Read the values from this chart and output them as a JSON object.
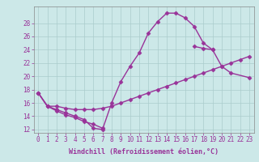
{
  "xlabel": "Windchill (Refroidissement éolien,°C)",
  "x_hours": [
    0,
    1,
    2,
    3,
    4,
    5,
    6,
    7,
    8,
    9,
    10,
    11,
    12,
    13,
    14,
    15,
    16,
    17,
    18,
    19,
    20,
    21,
    22,
    23
  ],
  "line1_x": [
    0,
    1,
    2,
    3,
    4,
    5,
    6,
    7,
    8,
    9,
    10,
    11,
    12,
    13,
    14,
    15,
    16,
    17,
    18,
    19
  ],
  "line1_y": [
    17.5,
    15.5,
    15.0,
    14.5,
    14.0,
    13.5,
    12.2,
    12.0,
    16.0,
    19.2,
    21.5,
    23.5,
    26.5,
    28.2,
    29.5,
    29.5,
    28.8,
    27.5,
    25.0,
    24.0
  ],
  "line2_x": [
    0,
    1,
    2,
    3,
    4,
    5,
    6,
    7,
    17,
    18,
    19,
    20,
    21,
    23
  ],
  "line2_y": [
    17.5,
    15.5,
    14.8,
    14.2,
    13.8,
    13.2,
    12.8,
    12.2,
    24.5,
    24.2,
    24.0,
    21.5,
    20.5,
    19.8
  ],
  "line3_x": [
    0,
    1,
    2,
    3,
    4,
    5,
    6,
    7,
    8,
    9,
    10,
    11,
    12,
    13,
    14,
    15,
    16,
    17,
    18,
    19,
    20,
    21,
    22,
    23
  ],
  "line3_y": [
    17.5,
    15.5,
    15.5,
    15.2,
    15.0,
    15.0,
    15.0,
    15.2,
    15.5,
    16.0,
    16.5,
    17.0,
    17.5,
    18.0,
    18.5,
    19.0,
    19.5,
    20.0,
    20.5,
    21.0,
    21.5,
    22.0,
    22.5,
    23.0
  ],
  "line_color": "#993399",
  "bg_color": "#cce8e8",
  "grid_color": "#aacccc",
  "ylim": [
    11.5,
    30.5
  ],
  "yticks": [
    12,
    14,
    16,
    18,
    20,
    22,
    24,
    26,
    28
  ],
  "marker": "D",
  "marker_size": 2.5,
  "linewidth": 1.0,
  "tick_fontsize": 5.5,
  "xlabel_fontsize": 6.0
}
